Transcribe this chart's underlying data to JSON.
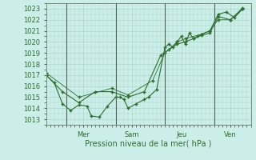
{
  "xlabel": "Pression niveau de la mer( hPa )",
  "bg_color": "#cceee8",
  "grid_color": "#aad4cc",
  "line_color": "#2d6e2d",
  "yticks": [
    1013,
    1014,
    1015,
    1016,
    1017,
    1018,
    1019,
    1020,
    1021,
    1022,
    1023
  ],
  "ylim": [
    1012.5,
    1023.5
  ],
  "xlim": [
    0,
    100
  ],
  "day_labels": [
    [
      "Mer",
      18
    ],
    [
      "Sam",
      42
    ],
    [
      "Jeu",
      66
    ],
    [
      "Ven",
      90
    ]
  ],
  "day_vlines": [
    10,
    34,
    58,
    82
  ],
  "series1": [
    [
      0,
      1017.0
    ],
    [
      4,
      1016.3
    ],
    [
      8,
      1014.4
    ],
    [
      12,
      1013.8
    ],
    [
      16,
      1014.3
    ],
    [
      20,
      1014.2
    ],
    [
      22,
      1013.3
    ],
    [
      26,
      1013.2
    ],
    [
      30,
      1014.2
    ],
    [
      34,
      1015.0
    ],
    [
      36,
      1015.0
    ],
    [
      38,
      1014.8
    ],
    [
      40,
      1014.0
    ],
    [
      44,
      1014.4
    ],
    [
      48,
      1014.8
    ],
    [
      50,
      1015.0
    ],
    [
      54,
      1015.7
    ],
    [
      58,
      1019.5
    ],
    [
      60,
      1019.8
    ],
    [
      62,
      1019.5
    ],
    [
      64,
      1020.0
    ],
    [
      66,
      1020.5
    ],
    [
      68,
      1019.8
    ],
    [
      70,
      1020.8
    ],
    [
      72,
      1020.3
    ],
    [
      74,
      1020.5
    ],
    [
      76,
      1020.7
    ],
    [
      80,
      1021.0
    ],
    [
      84,
      1022.5
    ],
    [
      88,
      1022.7
    ],
    [
      92,
      1022.2
    ],
    [
      96,
      1023.0
    ]
  ],
  "series2": [
    [
      0,
      1017.0
    ],
    [
      8,
      1015.5
    ],
    [
      16,
      1014.5
    ],
    [
      24,
      1015.5
    ],
    [
      32,
      1015.5
    ],
    [
      40,
      1015.0
    ],
    [
      48,
      1015.5
    ],
    [
      56,
      1018.8
    ],
    [
      60,
      1019.3
    ],
    [
      64,
      1019.8
    ],
    [
      68,
      1020.0
    ],
    [
      72,
      1020.3
    ],
    [
      76,
      1020.6
    ],
    [
      80,
      1020.8
    ],
    [
      84,
      1022.3
    ],
    [
      90,
      1022.0
    ],
    [
      96,
      1023.0
    ]
  ],
  "series3": [
    [
      0,
      1017.2
    ],
    [
      16,
      1015.0
    ],
    [
      32,
      1015.8
    ],
    [
      40,
      1015.2
    ],
    [
      52,
      1016.5
    ],
    [
      58,
      1019.0
    ],
    [
      64,
      1020.0
    ],
    [
      68,
      1020.3
    ],
    [
      76,
      1020.7
    ],
    [
      80,
      1021.0
    ],
    [
      84,
      1022.0
    ],
    [
      90,
      1022.0
    ],
    [
      96,
      1023.1
    ]
  ]
}
